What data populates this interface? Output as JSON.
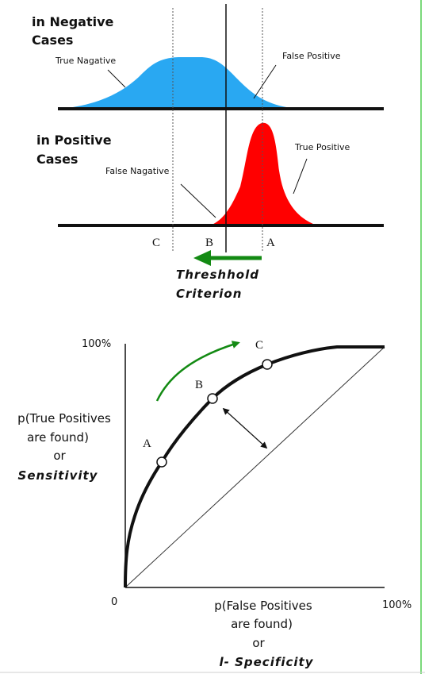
{
  "top_panel": {
    "negative_cases_title": [
      "in Negative",
      "Cases"
    ],
    "positive_cases_title": [
      "in Positive",
      "Cases"
    ],
    "true_negative_label": "True Nagative",
    "false_positive_label": "False Positive",
    "false_negative_label": "False Nagative",
    "true_positive_label": "True Positive",
    "threshold_markers": [
      "C",
      "B",
      "A"
    ],
    "criterion_label": [
      "Threshhold",
      "Criterion"
    ],
    "negative_color": "#29a8f2",
    "positive_color": "#ff0000",
    "arrow_color": "#138a13"
  },
  "roc_panel": {
    "y_axis_lines": [
      "p(True Positives",
      "are found)",
      "or"
    ],
    "y_axis_emphasis": "Sensitivity",
    "x_axis_lines": [
      "p(False Positives",
      "are found)",
      "or"
    ],
    "x_axis_emphasis": "l- Specificity",
    "y_max_label": "100%",
    "x_max_label": "100%",
    "origin_label": "0",
    "point_labels": [
      "A",
      "B",
      "C"
    ],
    "arrow_color": "#138a13"
  }
}
